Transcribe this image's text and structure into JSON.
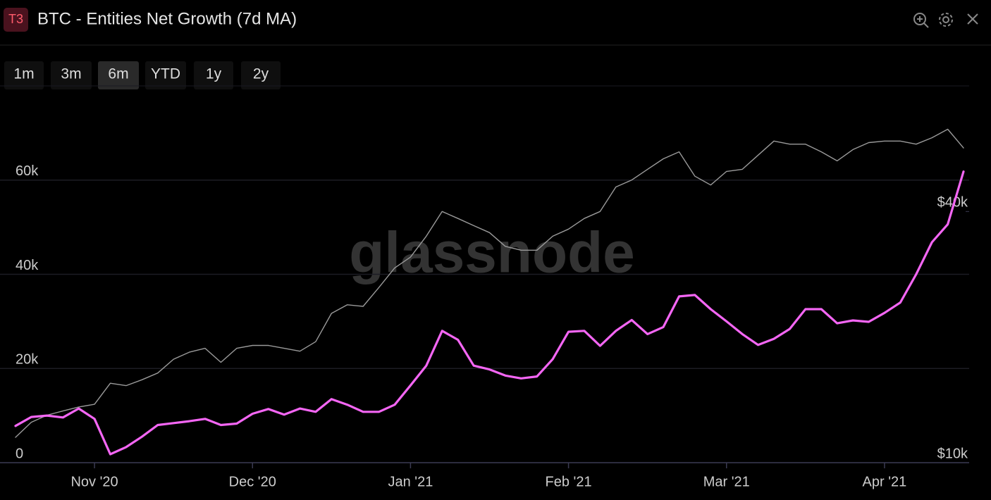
{
  "header": {
    "badge": "T3",
    "title": "BTC - Entities Net Growth (7d MA)"
  },
  "range_buttons": [
    "1m",
    "3m",
    "6m",
    "YTD",
    "1y",
    "2y"
  ],
  "selected_range": "6m",
  "watermark": "glassnode",
  "chart_data": {
    "type": "line",
    "categories": [
      null,
      null,
      null,
      null,
      null,
      "Nov '20",
      null,
      null,
      null,
      null,
      null,
      null,
      null,
      null,
      null,
      "Dec '20",
      null,
      null,
      null,
      null,
      null,
      null,
      null,
      null,
      null,
      "Jan '21",
      null,
      null,
      null,
      null,
      null,
      null,
      null,
      null,
      null,
      "Feb '21",
      null,
      null,
      null,
      null,
      null,
      null,
      null,
      null,
      null,
      "Mar '21",
      null,
      null,
      null,
      null,
      null,
      null,
      null,
      null,
      null,
      "Apr '21",
      null,
      null,
      null,
      null,
      null
    ],
    "series": [
      {
        "color": "#f466f4",
        "values": [
          7800,
          9700,
          10000,
          9600,
          11500,
          9300,
          1800,
          3300,
          5500,
          8000,
          8400,
          8800,
          9300,
          8000,
          8300,
          10400,
          11400,
          10200,
          11500,
          10800,
          13500,
          12300,
          10800,
          10800,
          12300,
          16400,
          20600,
          28000,
          26100,
          20600,
          19800,
          18500,
          17900,
          18300,
          22000,
          27800,
          28000,
          24800,
          28000,
          30300,
          27300,
          28800,
          35300,
          35600,
          32600,
          30000,
          27300,
          25000,
          26300,
          28400,
          32600,
          32600,
          29600,
          30200,
          29900,
          31800,
          34000,
          40000,
          46800,
          50600,
          61800
        ]
      },
      {
        "color": "#9a9a9a",
        "axis": "y2",
        "values": [
          11500,
          12500,
          13000,
          13300,
          13600,
          13800,
          15500,
          15300,
          15800,
          16400,
          17700,
          18400,
          18800,
          17400,
          18800,
          19100,
          19100,
          18800,
          18500,
          19500,
          22800,
          23900,
          23700,
          26300,
          29300,
          31100,
          34900,
          40000,
          38500,
          37000,
          35600,
          33000,
          32300,
          32300,
          34900,
          36300,
          38500,
          40000,
          45800,
          47600,
          50500,
          53500,
          55600,
          48600,
          46300,
          49900,
          50500,
          54600,
          59000,
          58000,
          58000,
          55600,
          52900,
          56300,
          58500,
          59000,
          59000,
          58000,
          60100,
          63000,
          56800
        ]
      }
    ],
    "ylim": [
      0,
      80000
    ],
    "yticks": [
      0,
      {
        "value": 20000,
        "label": "20k"
      },
      {
        "value": 40000,
        "label": "40k"
      },
      {
        "value": 60000,
        "label": "60k"
      }
    ],
    "y2lim": [
      10000,
      80000
    ],
    "y2scale": "log",
    "y2ticks": [
      {
        "value": 10000,
        "label": "$10k"
      },
      {
        "value": 40000,
        "label": "$40k"
      }
    ],
    "grid": true
  }
}
